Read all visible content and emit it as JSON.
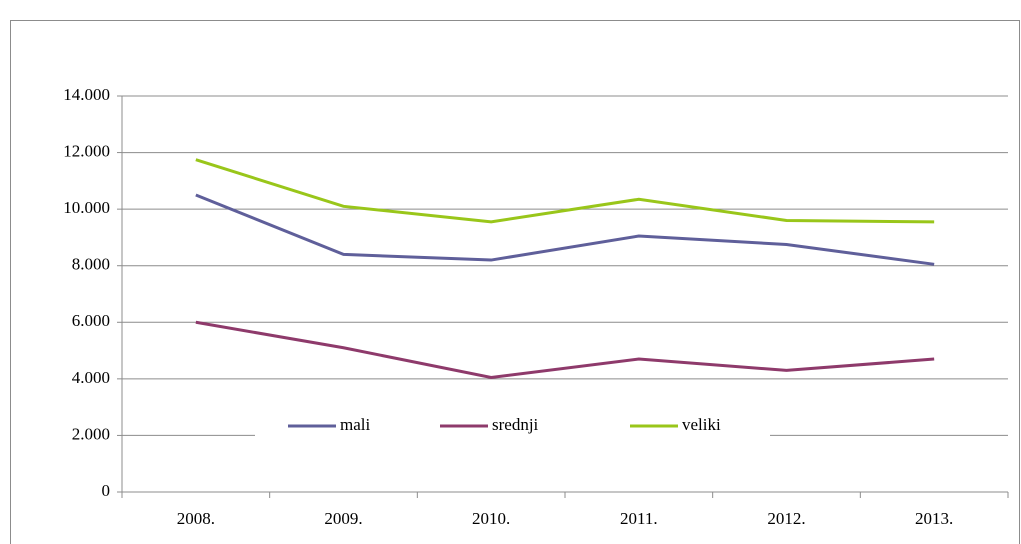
{
  "chart_data": {
    "type": "line",
    "categories": [
      "2008.",
      "2009.",
      "2010.",
      "2011.",
      "2012.",
      "2013."
    ],
    "series": [
      {
        "name": "mali",
        "color": "#5f5f9a",
        "values": [
          10500,
          8400,
          8200,
          9050,
          8750,
          8050
        ]
      },
      {
        "name": "srednji",
        "color": "#8e3a6b",
        "values": [
          6000,
          5100,
          4050,
          4700,
          4300,
          4700
        ]
      },
      {
        "name": "veliki",
        "color": "#99c61a",
        "values": [
          11750,
          10100,
          9550,
          10350,
          9600,
          9550
        ]
      }
    ],
    "ylim": [
      0,
      14000
    ],
    "yticks": [
      0,
      {
        "value": 2000,
        "label": "2.000"
      },
      {
        "value": 4000,
        "label": "4.000"
      },
      {
        "value": 6000,
        "label": "6.000"
      },
      {
        "value": 8000,
        "label": "8.000"
      },
      {
        "value": 10000,
        "label": "10.000"
      },
      {
        "value": 12000,
        "label": "12.000"
      },
      {
        "value": 14000,
        "label": "14.000"
      }
    ],
    "grid": true,
    "legend": "inside-bottom"
  }
}
